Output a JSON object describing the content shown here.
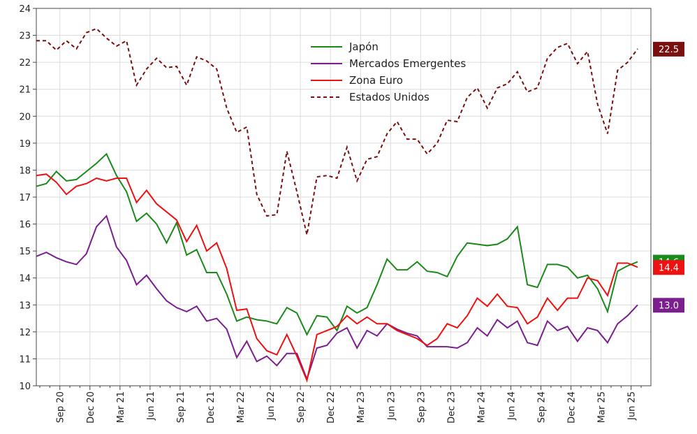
{
  "chart_data": {
    "type": "line",
    "categories": [
      null,
      null,
      "Sep 20",
      null,
      null,
      "Dec 20",
      null,
      null,
      "Mar 21",
      null,
      null,
      "Jun 21",
      null,
      null,
      "Sep 21",
      null,
      null,
      "Dec 21",
      null,
      null,
      "Mar 22",
      null,
      null,
      "Jun 22",
      null,
      null,
      "Sep 22",
      null,
      null,
      "Dec 22",
      null,
      null,
      "Mar 23",
      null,
      null,
      "Jun 23",
      null,
      null,
      "Sep 23",
      null,
      null,
      "Dec 23",
      null,
      null,
      "Mar 24",
      null,
      null,
      "Jun 24",
      null,
      null,
      "Sep 24",
      null,
      null,
      "Dec 24",
      null,
      null,
      "Mar 25",
      null,
      null,
      "Jun 25",
      null
    ],
    "ylim": [
      10,
      24
    ],
    "yticks": [
      10,
      11,
      12,
      13,
      14,
      15,
      16,
      17,
      18,
      19,
      20,
      21,
      22,
      23,
      24
    ],
    "grid": true,
    "series": [
      {
        "name": "Japón",
        "color": "#1a8a1a",
        "dash": false,
        "end_label": "14.6",
        "values": [
          17.4,
          17.5,
          17.95,
          17.6,
          17.65,
          17.95,
          18.25,
          18.6,
          17.8,
          17.2,
          16.1,
          16.4,
          16.0,
          15.3,
          16.05,
          14.85,
          15.05,
          14.2,
          14.2,
          13.4,
          12.4,
          12.55,
          12.45,
          12.4,
          12.3,
          12.9,
          12.7,
          11.9,
          12.6,
          12.55,
          12.05,
          12.95,
          12.7,
          12.9,
          13.75,
          14.7,
          14.3,
          14.3,
          14.6,
          14.25,
          14.2,
          14.05,
          14.8,
          15.3,
          15.25,
          15.2,
          15.25,
          15.45,
          15.9,
          13.75,
          13.65,
          14.5,
          14.5,
          14.4,
          14.0,
          14.1,
          13.6,
          12.75,
          14.25,
          14.45,
          14.6
        ]
      },
      {
        "name": "Mercados Emergentes",
        "color": "#7b1f8f",
        "dash": false,
        "end_label": "13.0",
        "values": [
          14.8,
          14.95,
          14.75,
          14.6,
          14.5,
          14.9,
          15.9,
          16.3,
          15.15,
          14.65,
          13.75,
          14.1,
          13.6,
          13.15,
          12.9,
          12.75,
          12.95,
          12.4,
          12.5,
          12.1,
          11.05,
          11.65,
          10.9,
          11.1,
          10.75,
          11.2,
          11.2,
          10.25,
          11.4,
          11.5,
          11.95,
          12.15,
          11.4,
          12.05,
          11.85,
          12.3,
          12.1,
          11.95,
          11.85,
          11.45,
          11.45,
          11.45,
          11.4,
          11.6,
          12.15,
          11.85,
          12.45,
          12.15,
          12.4,
          11.6,
          11.5,
          12.4,
          12.05,
          12.2,
          11.65,
          12.15,
          12.05,
          11.6,
          12.3,
          12.6,
          13.0
        ]
      },
      {
        "name": "Zona Euro",
        "color": "#ee1111",
        "dash": false,
        "end_label": "14.4",
        "values": [
          17.8,
          17.85,
          17.55,
          17.1,
          17.4,
          17.5,
          17.7,
          17.6,
          17.7,
          17.7,
          16.8,
          17.25,
          16.75,
          16.45,
          16.15,
          15.35,
          15.95,
          15.0,
          15.3,
          14.35,
          12.8,
          12.85,
          11.75,
          11.3,
          11.15,
          11.9,
          11.1,
          10.2,
          11.9,
          12.05,
          12.2,
          12.6,
          12.3,
          12.55,
          12.3,
          12.3,
          12.05,
          11.9,
          11.75,
          11.5,
          11.75,
          12.3,
          12.15,
          12.6,
          13.25,
          12.95,
          13.4,
          12.95,
          12.9,
          12.3,
          12.55,
          13.25,
          12.8,
          13.25,
          13.25,
          14.0,
          13.9,
          13.35,
          14.55,
          14.55,
          14.4
        ]
      },
      {
        "name": "Estados Unidos",
        "color": "#7a0f0f",
        "dash": true,
        "end_label": "22.5",
        "values": [
          22.8,
          22.8,
          22.45,
          22.8,
          22.5,
          23.1,
          23.25,
          22.9,
          22.6,
          22.8,
          21.15,
          21.75,
          22.15,
          21.8,
          21.85,
          21.15,
          22.2,
          22.05,
          21.75,
          20.3,
          19.4,
          19.6,
          17.1,
          16.3,
          16.35,
          18.7,
          17.2,
          15.6,
          17.75,
          17.8,
          17.7,
          18.85,
          17.6,
          18.4,
          18.5,
          19.35,
          19.8,
          19.15,
          19.15,
          18.6,
          19.0,
          19.85,
          19.8,
          20.7,
          21.05,
          20.3,
          21.05,
          21.2,
          21.65,
          20.9,
          21.05,
          22.15,
          22.55,
          22.7,
          21.95,
          22.4,
          20.45,
          19.35,
          21.7,
          22.0,
          22.5
        ]
      }
    ]
  }
}
